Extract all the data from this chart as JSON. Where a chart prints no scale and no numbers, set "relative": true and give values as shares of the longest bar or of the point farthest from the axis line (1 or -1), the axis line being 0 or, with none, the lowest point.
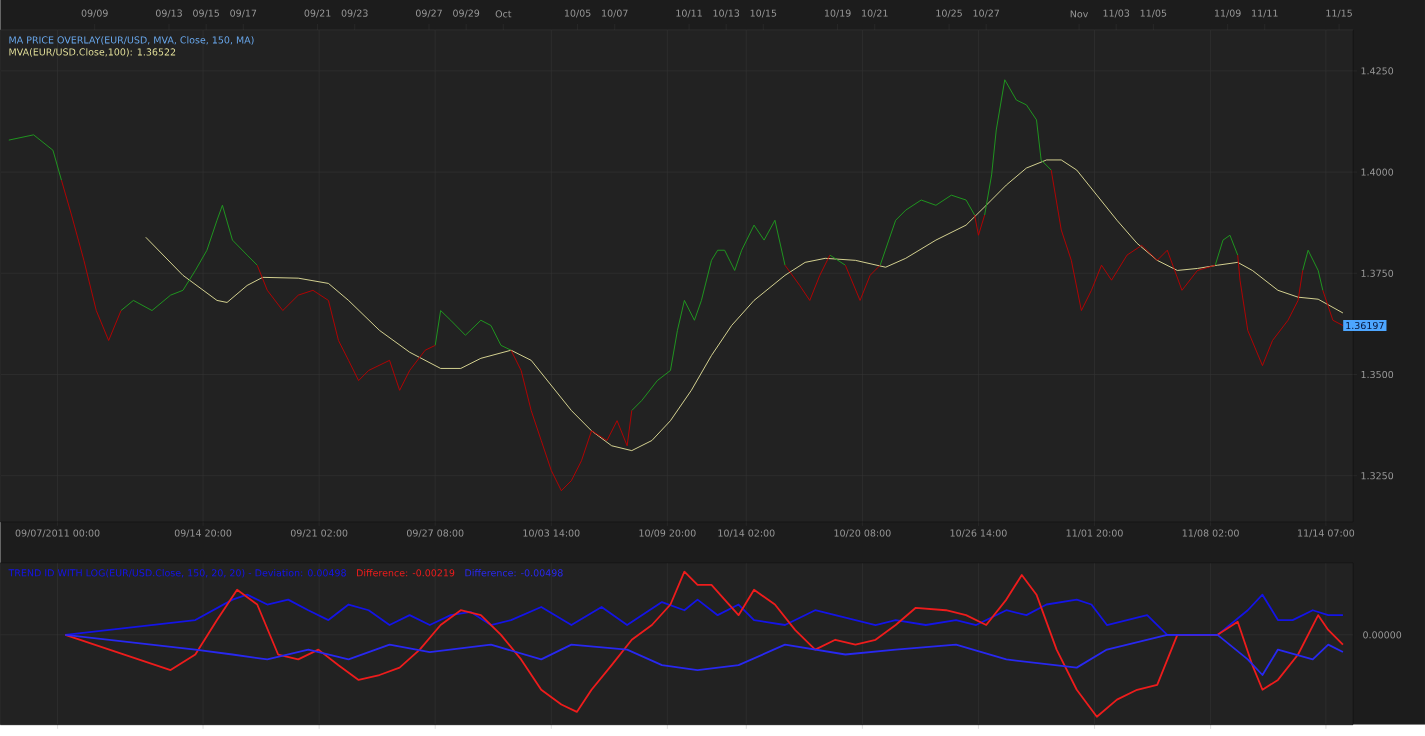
{
  "chart_data": [
    {
      "type": "line",
      "title": "MA PRICE OVERLAY(EUR/USD, MVA, Close, 150, MA)",
      "xlim": [
        "2011-09-03T22:00",
        "2011-11-15T18:00"
      ],
      "ylim": [
        1.3136,
        1.4351
      ],
      "xticks": [
        {
          "value": "2011-09-07T00:00",
          "label": "09/07/2011 00:00"
        },
        {
          "value": "2011-09-14T20:00",
          "label": "09/14 20:00"
        },
        {
          "value": "2011-09-21T02:00",
          "label": "09/21 02:00"
        },
        {
          "value": "2011-09-27T08:00",
          "label": "09/27 08:00"
        },
        {
          "value": "2011-10-03T14:00",
          "label": "10/03 14:00"
        },
        {
          "value": "2011-10-09T20:00",
          "label": "10/09 20:00"
        },
        {
          "value": "2011-10-14T02:00",
          "label": "10/14 02:00"
        },
        {
          "value": "2011-10-20T08:00",
          "label": "10/20 08:00"
        },
        {
          "value": "2011-10-26T14:00",
          "label": "10/26 14:00"
        },
        {
          "value": "2011-11-01T20:00",
          "label": "11/01 20:00"
        },
        {
          "value": "2011-11-08T02:00",
          "label": "11/08 02:00"
        },
        {
          "value": "2011-11-14T07:00",
          "label": "11/14 07:00"
        }
      ],
      "x2lim": [
        "2011-09-03T22:00",
        "2011-11-15T18:00"
      ],
      "x2ticks": [
        {
          "value": "2011-09-09",
          "label": "09/09"
        },
        {
          "value": "2011-09-13",
          "label": "09/13"
        },
        {
          "value": "2011-09-15",
          "label": "09/15"
        },
        {
          "value": "2011-09-17",
          "label": "09/17"
        },
        {
          "value": "2011-09-21",
          "label": "09/21"
        },
        {
          "value": "2011-09-23",
          "label": "09/23"
        },
        {
          "value": "2011-09-27",
          "label": "09/27"
        },
        {
          "value": "2011-09-29",
          "label": "09/29"
        },
        {
          "value": "2011-10-01",
          "label": "Oct"
        },
        {
          "value": "2011-10-05",
          "label": "10/05"
        },
        {
          "value": "2011-10-07",
          "label": "10/07"
        },
        {
          "value": "2011-10-11",
          "label": "10/11"
        },
        {
          "value": "2011-10-13",
          "label": "10/13"
        },
        {
          "value": "2011-10-15",
          "label": "10/15"
        },
        {
          "value": "2011-10-19",
          "label": "10/19"
        },
        {
          "value": "2011-10-21",
          "label": "10/21"
        },
        {
          "value": "2011-10-25",
          "label": "10/25"
        },
        {
          "value": "2011-10-27",
          "label": "10/27"
        },
        {
          "value": "2011-11-01",
          "label": "Nov"
        },
        {
          "value": "2011-11-03",
          "label": "11/03"
        },
        {
          "value": "2011-11-05",
          "label": "11/05"
        },
        {
          "value": "2011-11-09",
          "label": "11/09"
        },
        {
          "value": "2011-11-11",
          "label": "11/11"
        },
        {
          "value": "2011-11-15",
          "label": "11/15"
        }
      ],
      "yticks": [
        {
          "value": 1.325,
          "label": "1.3250"
        },
        {
          "value": 1.35,
          "label": "1.3500"
        },
        {
          "value": 1.375,
          "label": "1.3750"
        },
        {
          "value": 1.4,
          "label": "1.4000"
        },
        {
          "value": 1.425,
          "label": "1.4250"
        }
      ],
      "grid": true,
      "legend": "top left",
      "annotations": [
        "1.36197"
      ],
      "series": [
        {
          "color": "#1fa01f",
          "x": [
            "2011-09-04T09:00",
            "2011-09-05T17:00",
            "2011-09-06T18:00",
            "2011-09-07T05:00",
            "2011-09-08T08:00",
            "2011-09-10T10:00",
            "2011-09-11T02:00",
            "2011-09-12T02:00",
            "2011-09-13T02:00",
            "2011-09-13T18:00",
            "2011-09-14T10:00",
            "2011-09-15T01:00",
            "2011-09-15T14:00",
            "2011-09-15T21:00",
            "2011-09-16T10:00",
            "2011-09-17T05:00",
            "2011-09-17T18:00",
            "2011-09-22T02:00",
            "2011-09-27T08:00",
            "2011-09-27T15:00",
            "2011-09-28T04:00",
            "2011-09-28T23:00",
            "2011-09-29T19:00",
            "2011-09-30T08:00",
            "2011-09-30T21:00",
            "2011-10-01T10:00",
            "2011-10-04T15:00",
            "2011-10-07T22:00",
            "2011-10-08T11:00",
            "2011-10-09T07:00",
            "2011-10-10T00:00",
            "2011-10-10T09:00",
            "2011-10-10T18:00",
            "2011-10-11T07:00",
            "2011-10-11T16:00",
            "2011-10-12T05:00",
            "2011-10-12T13:00",
            "2011-10-12T22:00",
            "2011-10-13T11:00",
            "2011-10-13T20:00",
            "2011-10-14T12:00",
            "2011-10-15T01:00",
            "2011-10-15T15:00",
            "2011-10-16T04:00",
            "2011-10-17T11:00",
            "2011-10-18T14:00",
            "2011-10-19T10:00",
            "2011-10-20T04:00",
            "2011-10-21T07:00",
            "2011-10-22T03:00",
            "2011-10-22T16:00",
            "2011-10-23T12:00",
            "2011-10-24T07:00",
            "2011-10-25T03:00",
            "2011-10-25T22:00",
            "2011-10-26T09:00",
            "2011-10-26T15:00",
            "2011-10-26T22:00",
            "2011-10-27T07:00",
            "2011-10-27T13:00",
            "2011-10-28T00:00",
            "2011-10-28T15:00",
            "2011-10-29T04:00",
            "2011-10-29T17:00",
            "2011-10-29T23:00",
            "2011-10-30T12:00",
            "2011-11-04T01:00",
            "2011-11-08T08:00",
            "2011-11-08T18:00",
            "2011-11-09T03:00",
            "2011-11-09T13:00",
            "2011-11-11T09:00",
            "2011-11-13T01:00",
            "2011-11-13T08:00",
            "2011-11-13T21:00",
            "2011-11-14T03:00"
          ],
          "values": [
            1.4079,
            1.4092,
            1.4054,
            1.398,
            null,
            1.3658,
            1.3683,
            1.3658,
            1.3696,
            1.3708,
            1.3757,
            1.3807,
            1.3881,
            1.3918,
            1.3832,
            1.3795,
            1.377,
            null,
            1.3572,
            1.3658,
            1.3634,
            1.3597,
            1.3634,
            1.3621,
            1.3572,
            1.356,
            null,
            1.3411,
            1.3436,
            1.3485,
            1.351,
            1.3609,
            1.3683,
            1.3634,
            1.3683,
            1.3782,
            1.3807,
            1.3807,
            1.3757,
            1.3807,
            1.3869,
            1.3832,
            1.3881,
            1.377,
            null,
            1.3795,
            1.377,
            null,
            1.377,
            1.3881,
            1.3906,
            1.3931,
            1.3918,
            1.3943,
            1.3931,
            1.3894,
            null,
            1.3894,
            1.3993,
            1.4104,
            1.4228,
            1.4178,
            1.4166,
            1.4129,
            1.403,
            1.4005,
            null,
            1.377,
            1.3832,
            1.3844,
            1.3795,
            null,
            1.3757,
            1.3807,
            1.3757,
            1.3708
          ]
        },
        {
          "color": "#c00000",
          "x": [
            "2011-09-07T05:00",
            "2011-09-07T18:00",
            "2011-09-08T10:00",
            "2011-09-09T02:00",
            "2011-09-09T18:00",
            "2011-09-10T10:00",
            "2011-09-14T09:00",
            "2011-09-17T18:00",
            "2011-09-18T07:00",
            "2011-09-19T03:00",
            "2011-09-19T23:00",
            "2011-09-20T18:00",
            "2011-09-21T14:00",
            "2011-09-22T03:00",
            "2011-09-22T16:00",
            "2011-09-23T05:00",
            "2011-09-23T18:00",
            "2011-09-24T21:00",
            "2011-09-25T10:00",
            "2011-09-25T23:00",
            "2011-09-26T19:00",
            "2011-09-27T08:00",
            "2011-09-29T04:00",
            "2011-10-01T10:00",
            "2011-10-01T23:00",
            "2011-10-02T12:00",
            "2011-10-03T01:00",
            "2011-10-03T14:00",
            "2011-10-04T03:00",
            "2011-10-04T16:00",
            "2011-10-05T05:00",
            "2011-10-05T18:00",
            "2011-10-06T14:00",
            "2011-10-07T03:00",
            "2011-10-07T16:00",
            "2011-10-07T22:00",
            "2011-10-12T04:00",
            "2011-10-16T04:00",
            "2011-10-16T23:00",
            "2011-10-17T12:00",
            "2011-10-18T01:00",
            "2011-10-18T14:00",
            "2011-10-19T01:00",
            "2011-10-19T10:00",
            "2011-10-20T05:00",
            "2011-10-20T18:00",
            "2011-10-21T07:00",
            "2011-10-23T17:00",
            "2011-10-26T09:00",
            "2011-10-26T14:00",
            "2011-10-26T22:00",
            "2011-10-28T14:00",
            "2011-10-30T12:00",
            "2011-10-31T01:00",
            "2011-10-31T14:00",
            "2011-11-01T03:00",
            "2011-11-01T16:00",
            "2011-11-02T05:00",
            "2011-11-02T18:00",
            "2011-11-03T14:00",
            "2011-11-04T09:00",
            "2011-11-05T05:00",
            "2011-11-05T18:00",
            "2011-11-06T13:00",
            "2011-11-07T09:00",
            "2011-11-08T08:00",
            "2011-11-08T23:00",
            "2011-11-09T13:00",
            "2011-11-09T16:00",
            "2011-11-10T02:00",
            "2011-11-10T21:00",
            "2011-11-11T10:00",
            "2011-11-12T06:00",
            "2011-11-12T19:00",
            "2011-11-13T01:00",
            "2011-11-13T14:00",
            "2011-11-14T03:00",
            "2011-11-14T16:00",
            "2011-11-15T05:00"
          ],
          "values": [
            1.398,
            1.3894,
            1.3782,
            1.3658,
            1.3584,
            1.3658,
            null,
            1.377,
            1.3708,
            1.3658,
            1.3696,
            1.3708,
            1.3683,
            1.3584,
            1.3535,
            1.3485,
            1.351,
            1.3535,
            1.3461,
            1.351,
            1.356,
            1.3572,
            null,
            1.356,
            1.351,
            1.3411,
            1.3337,
            1.3263,
            1.3213,
            1.3238,
            1.3287,
            1.3361,
            1.3337,
            1.3386,
            1.3324,
            1.3411,
            null,
            1.377,
            1.372,
            1.3683,
            1.3745,
            1.3795,
            null,
            1.377,
            1.3683,
            1.3745,
            1.377,
            null,
            1.3894,
            1.3844,
            1.3894,
            null,
            1.4005,
            1.3857,
            1.3782,
            1.3658,
            1.3708,
            1.377,
            1.3733,
            1.3795,
            1.3819,
            1.3782,
            1.3807,
            1.3708,
            1.3757,
            1.377,
            null,
            1.3795,
            1.3733,
            1.3609,
            1.3522,
            1.3584,
            1.3634,
            1.3683,
            1.3757,
            null,
            1.3708,
            1.3634,
            1.3621
          ]
        },
        {
          "name": "MVA(EUR/USD.Close,100): 1.36522",
          "color": "#e6e39c",
          "x": [
            "2011-09-11T18:00",
            "2011-09-13T18:00",
            "2011-09-15T14:00",
            "2011-09-16T03:00",
            "2011-09-17T05:00",
            "2011-09-18T01:00",
            "2011-09-19T23:00",
            "2011-09-21T14:00",
            "2011-09-22T16:00",
            "2011-09-24T08:00",
            "2011-09-25T23:00",
            "2011-09-27T15:00",
            "2011-09-28T17:00",
            "2011-09-29T19:00",
            "2011-10-01T10:00",
            "2011-10-02T12:00",
            "2011-10-03T14:00",
            "2011-10-04T16:00",
            "2011-10-05T18:00",
            "2011-10-06T20:00",
            "2011-10-07T22:00",
            "2011-10-09T00:00",
            "2011-10-10T00:00",
            "2011-10-11T03:00",
            "2011-10-12T05:00",
            "2011-10-13T07:00",
            "2011-10-14T12:00",
            "2011-10-16T04:00",
            "2011-10-17T06:00",
            "2011-10-18T08:00",
            "2011-10-19T23:00",
            "2011-10-21T14:00",
            "2011-10-22T16:00",
            "2011-10-24T07:00",
            "2011-10-25T22:00",
            "2011-10-27T00:00",
            "2011-10-28T02:00",
            "2011-10-29T04:00",
            "2011-10-30T06:00",
            "2011-10-31T01:00",
            "2011-10-31T21:00",
            "2011-11-01T23:00",
            "2011-11-03T01:00",
            "2011-11-04T03:00",
            "2011-11-05T05:00",
            "2011-11-06T07:00",
            "2011-11-07T09:00",
            "2011-11-08T11:00",
            "2011-11-09T13:00",
            "2011-11-10T08:00",
            "2011-11-11T17:00",
            "2011-11-12T19:00",
            "2011-11-13T21:00",
            "2011-11-15T05:00"
          ],
          "values": [
            1.3839,
            1.3745,
            1.3683,
            1.3678,
            1.372,
            1.374,
            1.3738,
            1.3725,
            1.3683,
            1.3609,
            1.3555,
            1.3515,
            1.3515,
            1.354,
            1.356,
            1.3535,
            1.3473,
            1.3411,
            1.3361,
            1.3324,
            1.3312,
            1.3337,
            1.3386,
            1.3461,
            1.3547,
            1.3621,
            1.3683,
            1.3745,
            1.3777,
            1.3787,
            1.3782,
            1.3765,
            1.3787,
            1.3832,
            1.3869,
            1.3918,
            1.3968,
            1.401,
            1.403,
            1.403,
            1.4005,
            1.3943,
            1.3881,
            1.3824,
            1.3782,
            1.3757,
            1.3762,
            1.377,
            1.3777,
            1.3757,
            1.3708,
            1.3691,
            1.3686,
            1.3652
          ]
        }
      ]
    },
    {
      "type": "line",
      "relative": true,
      "xlim": [
        "2011-09-03T22:00",
        "2011-11-15T18:00"
      ],
      "xticks": [
        "2011-09-07T00:00",
        "2011-09-14T20:00",
        "2011-09-21T02:00",
        "2011-09-27T08:00",
        "2011-10-03T14:00",
        "2011-10-09T20:00",
        "2011-10-14T02:00",
        "2011-10-20T08:00",
        "2011-10-26T14:00",
        "2011-11-01T20:00",
        "2011-11-08T02:00",
        "2011-11-14T07:00"
      ],
      "tick_labels": false,
      "grid": "x",
      "legend": "top left",
      "ref_lines": [
        {
          "axis": "y",
          "value": 0,
          "label": "0.00000",
          "color": "#3c3c3c"
        }
      ],
      "series": [
        {
          "name": "TREND ID WITH LOG(EUR/USD.Close, 150, 20, 20) - Deviation: 0.00498",
          "color": "#1414e6",
          "x": [
            "2011-09-07T10:00",
            "2011-09-14T10:00",
            "2011-09-16T10:00",
            "2011-09-17T05:00",
            "2011-09-18T07:00",
            "2011-09-19T10:00",
            "2011-09-20T12:00",
            "2011-09-21T14:00",
            "2011-09-22T16:00",
            "2011-09-23T18:00",
            "2011-09-24T21:00",
            "2011-09-25T23:00",
            "2011-09-27T01:00",
            "2011-09-28T04:00",
            "2011-09-29T06:00",
            "2011-09-30T08:00",
            "2011-10-01T10:00",
            "2011-10-03T01:00",
            "2011-10-04T16:00",
            "2011-10-06T07:00",
            "2011-10-07T16:00",
            "2011-10-09T13:00",
            "2011-10-10T18:00",
            "2011-10-11T11:00",
            "2011-10-12T13:00",
            "2011-10-13T16:00",
            "2011-10-14T12:00",
            "2011-10-16T04:00",
            "2011-10-17T19:00",
            "2011-10-19T10:00",
            "2011-10-21T01:00",
            "2011-10-22T03:00",
            "2011-10-23T18:00",
            "2011-10-25T09:00",
            "2011-10-26T11:00",
            "2011-10-28T02:00",
            "2011-10-29T04:00",
            "2011-10-30T06:00",
            "2011-10-31T21:00",
            "2011-11-01T16:00",
            "2011-11-02T12:00",
            "2011-11-03T14:00",
            "2011-11-04T16:00",
            "2011-11-05T18:00",
            "2011-11-08T11:00",
            "2011-11-10T02:00",
            "2011-11-10T21:00",
            "2011-11-11T17:00",
            "2011-11-12T12:00",
            "2011-11-13T14:00",
            "2011-11-14T10:00",
            "2011-11-15T05:00"
          ],
          "values": [
            0,
            0.18,
            0.43,
            0.49,
            0.37,
            0.43,
            0.3,
            0.18,
            0.37,
            0.3,
            0.12,
            0.24,
            0.12,
            0.24,
            0.28,
            0.12,
            0.18,
            0.34,
            0.12,
            0.34,
            0.12,
            0.4,
            0.3,
            0.43,
            0.24,
            0.37,
            0.18,
            0.12,
            0.3,
            0.21,
            0.12,
            0.18,
            0.12,
            0.18,
            0.12,
            0.3,
            0.24,
            0.37,
            0.43,
            0.37,
            0.12,
            0.18,
            0.24,
            0,
            0,
            0.3,
            0.49,
            0.18,
            0.18,
            0.3,
            0.24,
            0.24
          ]
        },
        {
          "name": "Difference: -0.00219",
          "color": "#ee1c1c",
          "x": [
            "2011-09-07T10:00",
            "2011-09-13T02:00",
            "2011-09-14T10:00",
            "2011-09-15T14:00",
            "2011-09-16T16:00",
            "2011-09-17T18:00",
            "2011-09-18T21:00",
            "2011-09-19T23:00",
            "2011-09-21T01:00",
            "2011-09-22T03:00",
            "2011-09-23T05:00",
            "2011-09-24T08:00",
            "2011-09-25T10:00",
            "2011-09-26T12:00",
            "2011-09-27T15:00",
            "2011-09-28T17:00",
            "2011-09-29T19:00",
            "2011-09-30T21:00",
            "2011-10-01T23:00",
            "2011-10-03T01:00",
            "2011-10-04T03:00",
            "2011-10-04T23:00",
            "2011-10-05T18:00",
            "2011-10-06T20:00",
            "2011-10-07T22:00",
            "2011-10-09T00:00",
            "2011-10-10T00:00",
            "2011-10-10T18:00",
            "2011-10-11T11:00",
            "2011-10-12T05:00",
            "2011-10-12T22:00",
            "2011-10-13T16:00",
            "2011-10-14T12:00",
            "2011-10-15T15:00",
            "2011-10-16T17:00",
            "2011-10-17T19:00",
            "2011-10-18T21:00",
            "2011-10-19T23:00",
            "2011-10-21T01:00",
            "2011-10-22T03:00",
            "2011-10-23T05:00",
            "2011-10-24T20:00",
            "2011-10-25T22:00",
            "2011-10-27T00:00",
            "2011-10-28T02:00",
            "2011-10-28T22:00",
            "2011-10-29T17:00",
            "2011-10-30T19:00",
            "2011-10-31T21:00",
            "2011-11-01T23:00",
            "2011-11-03T01:00",
            "2011-11-04T03:00",
            "2011-11-05T05:00",
            "2011-11-06T07:00",
            "2011-11-08T11:00",
            "2011-11-09T13:00",
            "2011-11-10T08:00",
            "2011-11-10T21:00",
            "2011-11-11T17:00",
            "2011-11-12T19:00",
            "2011-11-13T21:00",
            "2011-11-14T10:00",
            "2011-11-15T05:00"
          ],
          "values": [
            0,
            -0.43,
            -0.24,
            0.18,
            0.55,
            0.37,
            -0.24,
            -0.3,
            -0.18,
            -0.37,
            -0.55,
            -0.49,
            -0.4,
            -0.18,
            0.12,
            0.3,
            0.24,
            0,
            -0.3,
            -0.67,
            -0.85,
            -0.94,
            -0.67,
            -0.37,
            -0.06,
            0.12,
            0.37,
            0.77,
            0.61,
            0.61,
            0.43,
            0.24,
            0.55,
            0.37,
            0.06,
            -0.18,
            -0.06,
            -0.12,
            -0.06,
            0.12,
            0.33,
            0.3,
            0.24,
            0.12,
            0.43,
            0.73,
            0.49,
            -0.18,
            -0.67,
            -1,
            -0.79,
            -0.67,
            -0.61,
            0,
            0,
            0.16,
            -0.37,
            -0.67,
            -0.55,
            -0.24,
            0.24,
            0.06,
            -0.12
          ]
        },
        {
          "name": "Difference: -0.00498",
          "color": "#2828f0",
          "x": [
            "2011-09-07T10:00",
            "2011-09-14T10:00",
            "2011-09-16T10:00",
            "2011-09-18T07:00",
            "2011-09-20T12:00",
            "2011-09-22T16:00",
            "2011-09-24T21:00",
            "2011-09-27T01:00",
            "2011-09-30T08:00",
            "2011-10-03T01:00",
            "2011-10-04T16:00",
            "2011-10-07T16:00",
            "2011-10-09T13:00",
            "2011-10-11T11:00",
            "2011-10-13T16:00",
            "2011-10-16T04:00",
            "2011-10-19T10:00",
            "2011-10-22T03:00",
            "2011-10-25T09:00",
            "2011-10-28T02:00",
            "2011-10-31T21:00",
            "2011-11-02T12:00",
            "2011-11-05T18:00",
            "2011-11-08T11:00",
            "2011-11-10T02:00",
            "2011-11-10T21:00",
            "2011-11-11T17:00",
            "2011-11-13T14:00",
            "2011-11-14T10:00",
            "2011-11-15T05:00"
          ],
          "values": [
            0,
            -0.18,
            -0.24,
            -0.3,
            -0.18,
            -0.3,
            -0.12,
            -0.21,
            -0.12,
            -0.3,
            -0.12,
            -0.18,
            -0.37,
            -0.43,
            -0.37,
            -0.12,
            -0.24,
            -0.18,
            -0.12,
            -0.3,
            -0.4,
            -0.18,
            0,
            0,
            -0.3,
            -0.49,
            -0.18,
            -0.3,
            -0.12,
            -0.21
          ]
        }
      ]
    }
  ]
}
